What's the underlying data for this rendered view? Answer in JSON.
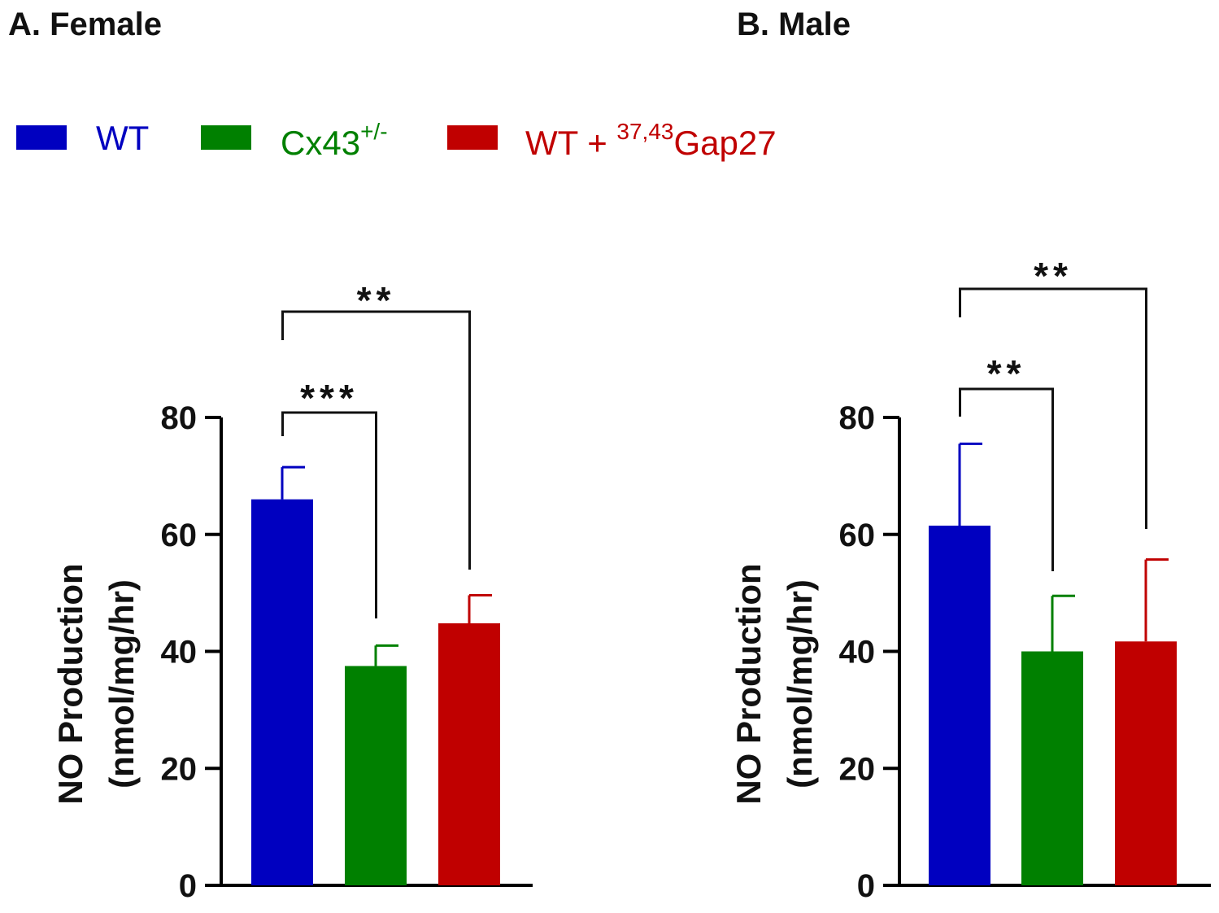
{
  "panels": {
    "a_title": "A. Female",
    "b_title": "B. Male"
  },
  "legend": {
    "items": [
      {
        "label": "WT",
        "sup": "",
        "sup_prefix": "",
        "suffix": "",
        "color": "#0000c0"
      },
      {
        "label": "Cx43",
        "sup": "+/-",
        "sup_prefix": "",
        "suffix": "",
        "color": "#008000"
      },
      {
        "label": "WT + ",
        "sup": "",
        "sup_prefix": "37,43",
        "suffix": "Gap27",
        "color": "#c00000"
      }
    ]
  },
  "chart_data": [
    {
      "type": "bar",
      "title": "A. Female",
      "categories": [
        "WT",
        "Cx43+/-",
        "WT + 37,43Gap27"
      ],
      "values": [
        66,
        37.5,
        44.8
      ],
      "errors": [
        5.5,
        3.5,
        4.8
      ],
      "colors": [
        "#0000c0",
        "#008000",
        "#c00000"
      ],
      "ylabel": "NO Production",
      "ylabel_units": "(nmol/mg/hr)",
      "ylim": [
        0,
        80
      ],
      "yticks": [
        "0",
        "20",
        "40",
        "60",
        "80"
      ],
      "significance": [
        {
          "from": 0,
          "to": 1,
          "label": "***"
        },
        {
          "from": 0,
          "to": 2,
          "label": "**"
        }
      ]
    },
    {
      "type": "bar",
      "title": "B. Male",
      "categories": [
        "WT",
        "Cx43+/-",
        "WT + 37,43Gap27"
      ],
      "values": [
        61.5,
        40,
        41.7
      ],
      "errors": [
        14,
        9.5,
        14
      ],
      "colors": [
        "#0000c0",
        "#008000",
        "#c00000"
      ],
      "ylabel": "NO Production",
      "ylabel_units": "(nmol/mg/hr)",
      "ylim": [
        0,
        80
      ],
      "yticks": [
        "0",
        "20",
        "40",
        "60",
        "80"
      ],
      "significance": [
        {
          "from": 0,
          "to": 1,
          "label": "**"
        },
        {
          "from": 0,
          "to": 2,
          "label": "**"
        }
      ]
    }
  ]
}
